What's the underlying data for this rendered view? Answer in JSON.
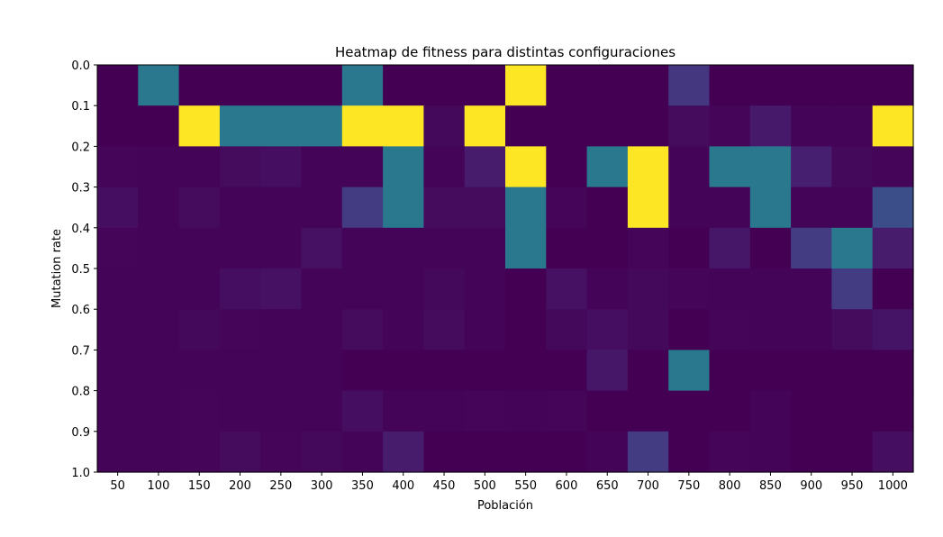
{
  "chart_data": {
    "type": "heatmap",
    "title": "Heatmap de fitness para distintas configuraciones",
    "xlabel": "Población",
    "ylabel": "Mutation rate",
    "x_categories": [
      "50",
      "100",
      "150",
      "200",
      "250",
      "300",
      "350",
      "400",
      "450",
      "500",
      "550",
      "600",
      "650",
      "700",
      "750",
      "800",
      "850",
      "900",
      "950",
      "1000"
    ],
    "y_tick_labels": [
      "0.0",
      "0.1",
      "0.2",
      "0.3",
      "0.4",
      "0.5",
      "0.6",
      "0.7",
      "0.8",
      "0.9",
      "1.0"
    ],
    "colormap": "viridis",
    "value_range": [
      0,
      1
    ],
    "grid": false,
    "rows": [
      [
        0.0,
        0.5,
        0.0,
        0.0,
        0.0,
        0.0,
        0.5,
        0.0,
        0.0,
        0.0,
        1.0,
        0.0,
        0.0,
        0.0,
        0.2,
        0.0,
        0.0,
        0.0,
        0.0,
        0.0
      ],
      [
        0.0,
        0.0,
        1.0,
        0.5,
        0.5,
        0.5,
        1.0,
        1.0,
        0.03,
        1.0,
        0.0,
        0.0,
        0.0,
        0.0,
        0.04,
        0.02,
        0.09,
        0.01,
        0.01,
        1.0
      ],
      [
        0.02,
        0.01,
        0.01,
        0.04,
        0.05,
        0.01,
        0.01,
        0.5,
        0.01,
        0.1,
        1.0,
        0.0,
        0.5,
        1.0,
        0.01,
        0.5,
        0.5,
        0.11,
        0.03,
        0.02
      ],
      [
        0.05,
        0.01,
        0.04,
        0.01,
        0.01,
        0.01,
        0.22,
        0.5,
        0.04,
        0.04,
        0.5,
        0.02,
        0.0,
        1.0,
        0.01,
        0.01,
        0.5,
        0.01,
        0.01,
        0.3
      ],
      [
        0.02,
        0.01,
        0.01,
        0.01,
        0.01,
        0.06,
        0.01,
        0.01,
        0.01,
        0.01,
        0.5,
        0.0,
        0.0,
        0.02,
        0.0,
        0.08,
        0.0,
        0.22,
        0.5,
        0.1
      ],
      [
        0.01,
        0.01,
        0.01,
        0.05,
        0.06,
        0.01,
        0.01,
        0.01,
        0.03,
        0.01,
        0.0,
        0.06,
        0.01,
        0.03,
        0.02,
        0.01,
        0.01,
        0.01,
        0.22,
        0.0
      ],
      [
        0.01,
        0.01,
        0.03,
        0.02,
        0.01,
        0.01,
        0.04,
        0.01,
        0.04,
        0.01,
        0.0,
        0.03,
        0.05,
        0.03,
        0.0,
        0.02,
        0.01,
        0.01,
        0.04,
        0.07
      ],
      [
        0.01,
        0.01,
        0.01,
        0.01,
        0.01,
        0.01,
        0.0,
        0.0,
        0.0,
        0.0,
        0.0,
        0.0,
        0.08,
        0.0,
        0.5,
        0.0,
        0.0,
        0.0,
        0.0,
        0.0
      ],
      [
        0.01,
        0.01,
        0.02,
        0.01,
        0.01,
        0.01,
        0.05,
        0.01,
        0.01,
        0.02,
        0.01,
        0.02,
        0.0,
        0.0,
        0.0,
        0.0,
        0.01,
        0.0,
        0.0,
        0.0
      ],
      [
        0.01,
        0.01,
        0.02,
        0.04,
        0.02,
        0.03,
        0.01,
        0.1,
        0.0,
        0.0,
        0.0,
        0.0,
        0.01,
        0.22,
        0.0,
        0.02,
        0.01,
        0.0,
        0.0,
        0.05
      ]
    ]
  }
}
